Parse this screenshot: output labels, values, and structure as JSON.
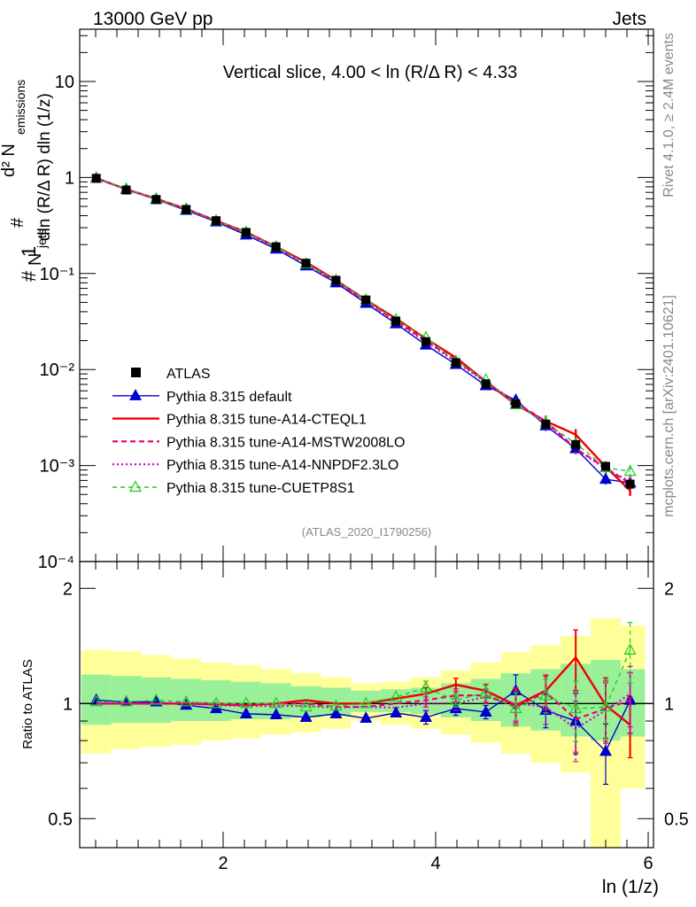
{
  "header": {
    "left": "13000 GeV pp",
    "right": "Jets",
    "side_top": "Rivet 4.1.0, ≥ 2.4M events",
    "side_bottom": "mcplots.cern.ch [arXiv:2401.10621]"
  },
  "colors": {
    "atlas": "#000000",
    "default": "#0000cc",
    "cteql1": "#ee0000",
    "mstw": "#ee0077",
    "nnpdf": "#cc00cc",
    "cuetp": "#22cc22",
    "band_inner": "#99f099",
    "band_outer": "#ffff99"
  },
  "chart_data": [
    {
      "type": "line",
      "panel": "main",
      "title": "Vertical slice, 4.00 < ln (R/Δ R) < 4.33",
      "analysis_label": "(ATLAS_2020_I1790256)",
      "ylabel": "#1/N_jets #d² N_emissions / dln (R/Δ R) dln (1/z)",
      "yscale": "log",
      "ylim": [
        0.0001,
        35
      ],
      "xlim": [
        0.65,
        6.05
      ],
      "y_ticks": [
        {
          "value": 10,
          "label": "10"
        },
        {
          "value": 1,
          "label": "1"
        },
        {
          "value": 0.1,
          "label": "10⁻¹"
        },
        {
          "value": 0.01,
          "label": "10⁻²"
        },
        {
          "value": 0.001,
          "label": "10⁻³"
        },
        {
          "value": 0.0001,
          "label": "10⁻⁴"
        }
      ],
      "x": [
        0.806,
        1.088,
        1.37,
        1.652,
        1.934,
        2.216,
        2.498,
        2.78,
        3.062,
        3.344,
        3.626,
        3.908,
        4.19,
        4.472,
        4.754,
        5.036,
        5.318,
        5.6,
        5.83
      ],
      "series": [
        {
          "name": "ATLAS",
          "key": "atlas",
          "values": [
            0.98,
            0.74,
            0.59,
            0.465,
            0.355,
            0.268,
            0.19,
            0.128,
            0.085,
            0.053,
            0.032,
            0.0195,
            0.0118,
            0.0071,
            0.0044,
            0.0027,
            0.00165,
            0.00098,
            0.00064
          ]
        },
        {
          "name": "Pythia 8.315 default",
          "key": "default",
          "values": [
            0.985,
            0.75,
            0.59,
            0.455,
            0.345,
            0.252,
            0.18,
            0.12,
            0.08,
            0.049,
            0.03,
            0.018,
            0.0113,
            0.0068,
            0.0048,
            0.0026,
            0.0015,
            0.00072,
            0.00066
          ]
        },
        {
          "name": "Pythia 8.315 tune-A14-CTEQL1",
          "key": "cteql1",
          "values": [
            0.985,
            0.755,
            0.6,
            0.47,
            0.355,
            0.27,
            0.19,
            0.131,
            0.085,
            0.053,
            0.034,
            0.021,
            0.0133,
            0.0075,
            0.0043,
            0.0029,
            0.0021,
            0.00097,
            0.00055
          ]
        },
        {
          "name": "Pythia 8.315 tune-A14-MSTW2008LO",
          "key": "mstw",
          "values": [
            0.985,
            0.755,
            0.6,
            0.47,
            0.355,
            0.267,
            0.188,
            0.128,
            0.083,
            0.052,
            0.032,
            0.02,
            0.0125,
            0.0075,
            0.0045,
            0.0029,
            0.0015,
            0.00095,
            0.00065
          ]
        },
        {
          "name": "Pythia 8.315 tune-A14-NNPDF2.3LO",
          "key": "nnpdf",
          "values": [
            0.985,
            0.75,
            0.6,
            0.465,
            0.35,
            0.265,
            0.187,
            0.126,
            0.083,
            0.051,
            0.031,
            0.0195,
            0.012,
            0.0074,
            0.0046,
            0.0027,
            0.0015,
            0.00092,
            0.00068
          ]
        },
        {
          "name": "Pythia 8.315 tune-CUETP8S1",
          "key": "cuetp",
          "values": [
            0.99,
            0.76,
            0.6,
            0.47,
            0.355,
            0.27,
            0.19,
            0.126,
            0.085,
            0.053,
            0.033,
            0.0215,
            0.0122,
            0.0078,
            0.0043,
            0.0028,
            0.0017,
            0.00095,
            0.00087
          ]
        }
      ]
    },
    {
      "type": "line",
      "panel": "ratio",
      "ylabel": "Ratio to ATLAS",
      "xlabel": "ln (1/z)",
      "yscale": "log",
      "ylim": [
        0.42,
        2.35
      ],
      "xlim": [
        0.65,
        6.05
      ],
      "y_ticks": [
        {
          "value": 2,
          "label": "2"
        },
        {
          "value": 1,
          "label": "1"
        },
        {
          "value": 0.5,
          "label": "0.5"
        }
      ],
      "x_ticks": [
        {
          "value": 2,
          "label": "2"
        },
        {
          "value": 4,
          "label": "4"
        },
        {
          "value": 6,
          "label": "6"
        }
      ],
      "bin_edges": [
        0.665,
        0.947,
        1.229,
        1.511,
        1.793,
        2.075,
        2.357,
        2.639,
        2.921,
        3.203,
        3.485,
        3.767,
        4.049,
        4.331,
        4.613,
        4.895,
        5.177,
        5.459,
        5.741,
        5.97
      ],
      "band_inner": [
        [
          0.88,
          1.19
        ],
        [
          0.89,
          1.18
        ],
        [
          0.89,
          1.17
        ],
        [
          0.9,
          1.16
        ],
        [
          0.9,
          1.15
        ],
        [
          0.91,
          1.14
        ],
        [
          0.91,
          1.13
        ],
        [
          0.92,
          1.11
        ],
        [
          0.93,
          1.1
        ],
        [
          0.95,
          1.08
        ],
        [
          0.95,
          1.09
        ],
        [
          0.94,
          1.1
        ],
        [
          0.92,
          1.13
        ],
        [
          0.9,
          1.16
        ],
        [
          0.87,
          1.2
        ],
        [
          0.85,
          1.23
        ],
        [
          0.82,
          1.27
        ],
        [
          0.8,
          1.3
        ],
        [
          0.82,
          1.23
        ]
      ],
      "band_outer": [
        [
          0.74,
          1.38
        ],
        [
          0.76,
          1.37
        ],
        [
          0.77,
          1.34
        ],
        [
          0.78,
          1.31
        ],
        [
          0.8,
          1.28
        ],
        [
          0.81,
          1.26
        ],
        [
          0.83,
          1.23
        ],
        [
          0.84,
          1.2
        ],
        [
          0.86,
          1.17
        ],
        [
          0.9,
          1.13
        ],
        [
          0.88,
          1.14
        ],
        [
          0.86,
          1.17
        ],
        [
          0.83,
          1.22
        ],
        [
          0.79,
          1.28
        ],
        [
          0.74,
          1.36
        ],
        [
          0.7,
          1.42
        ],
        [
          0.66,
          1.5
        ],
        [
          0.4,
          1.67
        ],
        [
          0.6,
          1.6
        ]
      ],
      "x": [
        0.806,
        1.088,
        1.37,
        1.652,
        1.934,
        2.216,
        2.498,
        2.78,
        3.062,
        3.344,
        3.626,
        3.908,
        4.19,
        4.472,
        4.754,
        5.036,
        5.318,
        5.6,
        5.83
      ],
      "series": [
        {
          "name": "Pythia 8.315 default",
          "key": "default",
          "values": [
            1.02,
            1.01,
            1.01,
            0.99,
            0.97,
            0.94,
            0.935,
            0.92,
            0.94,
            0.915,
            0.945,
            0.92,
            0.97,
            0.95,
            1.08,
            0.96,
            0.9,
            0.75,
            1.02
          ]
        },
        {
          "name": "Pythia 8.315 tune-A14-CTEQL1",
          "key": "cteql1",
          "values": [
            1.0,
            1.0,
            1.0,
            1.0,
            0.995,
            0.99,
            1.0,
            1.02,
            1.0,
            1.0,
            1.03,
            1.06,
            1.12,
            1.08,
            0.99,
            1.08,
            1.32,
            0.99,
            0.88
          ]
        },
        {
          "name": "Pythia 8.315 tune-A14-MSTW2008LO",
          "key": "mstw",
          "values": [
            1.0,
            1.0,
            1.0,
            1.005,
            1.0,
            0.995,
            1.0,
            1.0,
            0.98,
            0.98,
            1.0,
            1.02,
            1.05,
            1.05,
            0.98,
            1.07,
            0.91,
            0.97,
            1.02
          ]
        },
        {
          "name": "Pythia 8.315 tune-A14-NNPDF2.3LO",
          "key": "nnpdf",
          "values": [
            1.0,
            1.0,
            1.0,
            1.0,
            0.99,
            0.985,
            0.985,
            0.985,
            0.975,
            0.98,
            0.975,
            1.0,
            1.0,
            1.04,
            1.0,
            0.98,
            0.86,
            0.96,
            1.06
          ]
        },
        {
          "name": "Pythia 8.315 tune-CUETP8S1",
          "key": "cuetp",
          "values": [
            1.01,
            1.01,
            1.02,
            1.01,
            1.0,
            1.0,
            1.0,
            0.98,
            0.985,
            1.0,
            1.04,
            1.1,
            1.02,
            1.07,
            0.97,
            1.05,
            0.97,
            0.98,
            1.38
          ]
        }
      ]
    }
  ]
}
